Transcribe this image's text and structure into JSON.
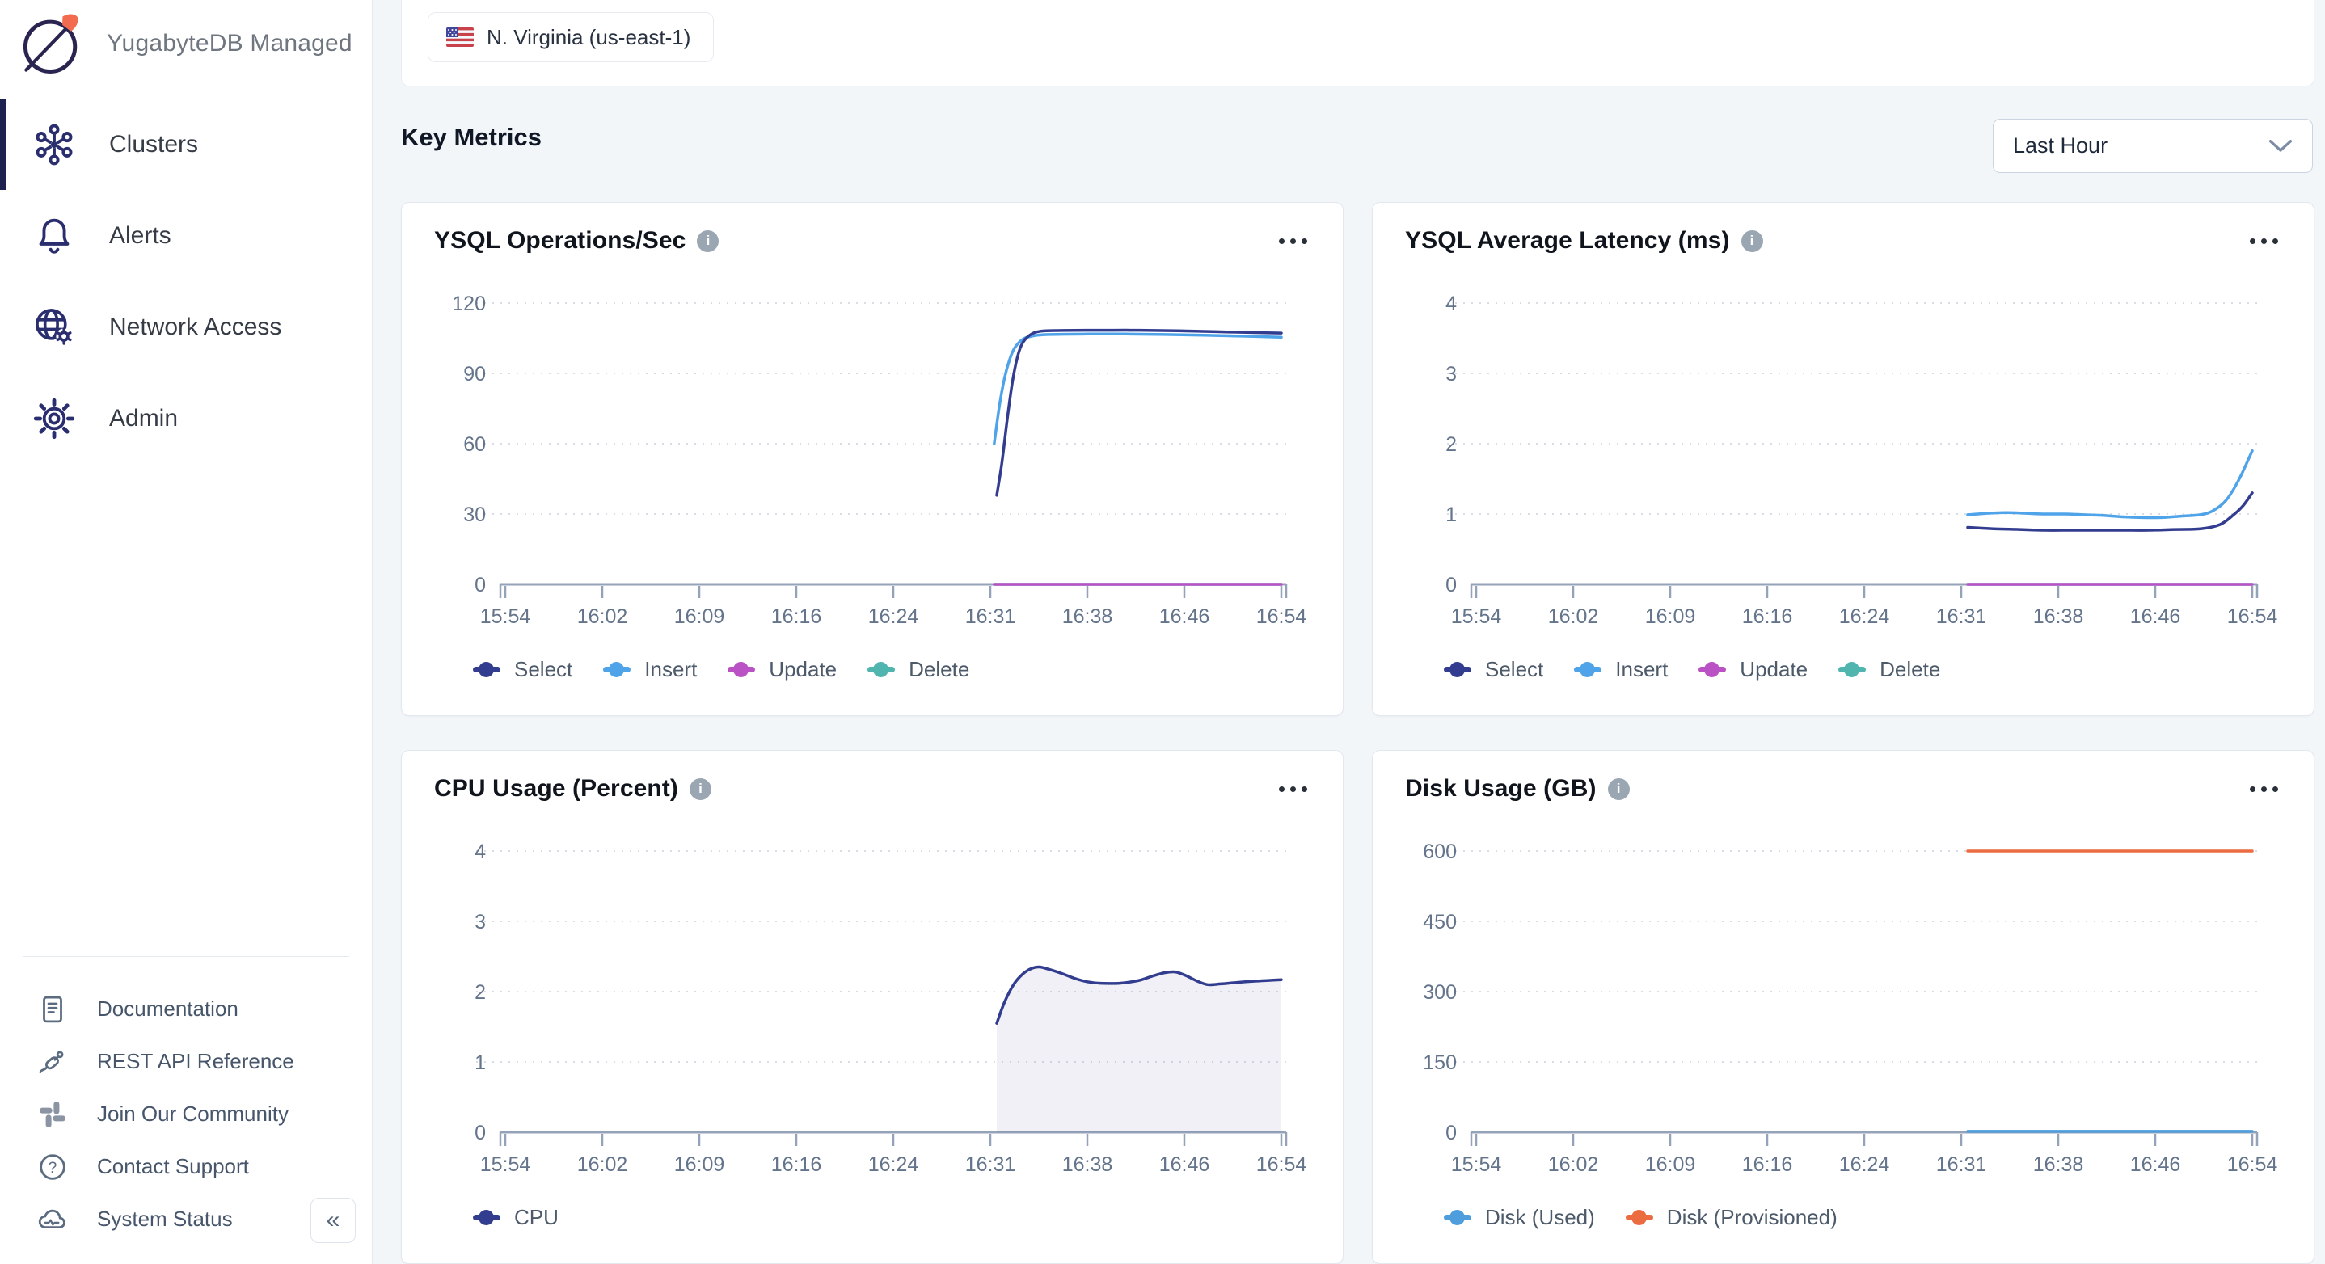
{
  "app": {
    "title": "YugabyteDB Managed"
  },
  "sidebar": {
    "nav": [
      {
        "label": "Clusters",
        "icon": "clusters-icon",
        "active": true
      },
      {
        "label": "Alerts",
        "icon": "bell-icon",
        "active": false
      },
      {
        "label": "Network Access",
        "icon": "globe-gear-icon",
        "active": false
      },
      {
        "label": "Admin",
        "icon": "gear-icon",
        "active": false
      }
    ],
    "footer": [
      {
        "label": "Documentation",
        "icon": "document-icon"
      },
      {
        "label": "REST API Reference",
        "icon": "plug-icon"
      },
      {
        "label": "Join Our Community",
        "icon": "slack-icon"
      },
      {
        "label": "Contact Support",
        "icon": "help-icon"
      },
      {
        "label": "System Status",
        "icon": "cloud-status-icon"
      }
    ],
    "collapse_glyph": "«"
  },
  "header": {
    "region": "N. Virginia (us-east-1)"
  },
  "main": {
    "heading": "Key Metrics",
    "time_range": "Last Hour"
  },
  "icons": {
    "info_glyph": "i"
  },
  "colors": {
    "select": "#333D90",
    "insert": "#4FA3E8",
    "update": "#BA52C5",
    "delete": "#4FB5AE",
    "disk_used": "#4E9EDD",
    "disk_provisioned": "#EC6C41",
    "active_nav": "#1C2150",
    "sidebar_icon": "#2A2E6E",
    "axis": "#94A3B8",
    "grid": "#D9DEE6",
    "tick_text": "#64748B",
    "background": "#F3F6F9",
    "card_border": "#E3E8EF"
  },
  "chart_data": [
    {
      "type": "line",
      "title": "YSQL Operations/Sec",
      "x_ticks": [
        "15:54",
        "16:02",
        "16:09",
        "16:16",
        "16:24",
        "16:31",
        "16:38",
        "16:46",
        "16:54"
      ],
      "x_range_minutes": [
        0,
        60
      ],
      "ylim": [
        0,
        120
      ],
      "y_ticks": [
        0,
        30,
        60,
        90,
        120
      ],
      "grid": "dotted-horizontal",
      "legend_position": "bottom-left",
      "series": [
        {
          "name": "Select",
          "color": "#333D90",
          "points": [
            [
              38,
              38
            ],
            [
              38.4,
              52
            ],
            [
              38.8,
              70
            ],
            [
              39.2,
              86
            ],
            [
              39.6,
              97
            ],
            [
              40,
              103
            ],
            [
              40.6,
              106.5
            ],
            [
              41.4,
              108
            ],
            [
              43,
              108.3
            ],
            [
              46,
              108.4
            ],
            [
              49,
              108.4
            ],
            [
              52,
              108.2
            ],
            [
              55,
              107.8
            ],
            [
              58,
              107.4
            ],
            [
              60,
              107.2
            ]
          ]
        },
        {
          "name": "Insert",
          "color": "#4FA3E8",
          "points": [
            [
              37.8,
              60
            ],
            [
              38.2,
              76
            ],
            [
              38.6,
              88
            ],
            [
              39,
              96
            ],
            [
              39.4,
              101
            ],
            [
              40,
              104.5
            ],
            [
              40.8,
              106
            ],
            [
              42,
              106.6
            ],
            [
              45,
              106.8
            ],
            [
              48,
              106.8
            ],
            [
              51,
              106.6
            ],
            [
              54,
              106.3
            ],
            [
              57,
              105.9
            ],
            [
              60,
              105.4
            ]
          ]
        },
        {
          "name": "Update",
          "color": "#BA52C5",
          "points": [
            [
              37.8,
              0
            ],
            [
              60,
              0
            ]
          ]
        },
        {
          "name": "Delete",
          "color": "#4FB5AE",
          "points": [
            [
              37.8,
              0
            ],
            [
              60,
              0
            ]
          ]
        }
      ]
    },
    {
      "type": "line",
      "title": "YSQL Average Latency (ms)",
      "x_ticks": [
        "15:54",
        "16:02",
        "16:09",
        "16:16",
        "16:24",
        "16:31",
        "16:38",
        "16:46",
        "16:54"
      ],
      "x_range_minutes": [
        0,
        60
      ],
      "ylim": [
        0,
        4
      ],
      "y_ticks": [
        0,
        1,
        2,
        3,
        4
      ],
      "grid": "dotted-horizontal",
      "legend_position": "bottom-left",
      "series": [
        {
          "name": "Select",
          "color": "#333D90",
          "points": [
            [
              38,
              0.81
            ],
            [
              40,
              0.79
            ],
            [
              42,
              0.78
            ],
            [
              44,
              0.77
            ],
            [
              46,
              0.77
            ],
            [
              48,
              0.77
            ],
            [
              50,
              0.77
            ],
            [
              52,
              0.77
            ],
            [
              54,
              0.78
            ],
            [
              56,
              0.79
            ],
            [
              57.5,
              0.85
            ],
            [
              58.5,
              0.98
            ],
            [
              59.3,
              1.12
            ],
            [
              60,
              1.3
            ]
          ]
        },
        {
          "name": "Insert",
          "color": "#4FA3E8",
          "points": [
            [
              38,
              0.99
            ],
            [
              39.5,
              1.01
            ],
            [
              41,
              1.02
            ],
            [
              42.5,
              1.01
            ],
            [
              44,
              1.0
            ],
            [
              45.5,
              1.0
            ],
            [
              47,
              0.99
            ],
            [
              48.5,
              0.98
            ],
            [
              50,
              0.96
            ],
            [
              51.5,
              0.95
            ],
            [
              53,
              0.95
            ],
            [
              54.5,
              0.97
            ],
            [
              56,
              0.99
            ],
            [
              57,
              1.05
            ],
            [
              58,
              1.2
            ],
            [
              59,
              1.5
            ],
            [
              60,
              1.9
            ]
          ]
        },
        {
          "name": "Update",
          "color": "#BA52C5",
          "points": [
            [
              38,
              0
            ],
            [
              60,
              0
            ]
          ]
        },
        {
          "name": "Delete",
          "color": "#4FB5AE",
          "points": [
            [
              38,
              0
            ],
            [
              60,
              0
            ]
          ]
        }
      ]
    },
    {
      "type": "line",
      "title": "CPU Usage (Percent)",
      "x_ticks": [
        "15:54",
        "16:02",
        "16:09",
        "16:16",
        "16:24",
        "16:31",
        "16:38",
        "16:46",
        "16:54"
      ],
      "x_range_minutes": [
        0,
        60
      ],
      "ylim": [
        0,
        4
      ],
      "y_ticks": [
        0,
        1,
        2,
        3,
        4
      ],
      "grid": "dotted-horizontal",
      "legend_position": "bottom-left",
      "series": [
        {
          "name": "CPU",
          "color": "#333D90",
          "area": true,
          "area_color": "rgba(49,46,129,0.07)",
          "points": [
            [
              38,
              1.55
            ],
            [
              38.6,
              1.85
            ],
            [
              39.3,
              2.1
            ],
            [
              40,
              2.25
            ],
            [
              40.7,
              2.33
            ],
            [
              41.3,
              2.35
            ],
            [
              42,
              2.32
            ],
            [
              43,
              2.26
            ],
            [
              44,
              2.19
            ],
            [
              45,
              2.14
            ],
            [
              46,
              2.12
            ],
            [
              47.5,
              2.12
            ],
            [
              49,
              2.16
            ],
            [
              50,
              2.22
            ],
            [
              51,
              2.27
            ],
            [
              51.8,
              2.28
            ],
            [
              52.6,
              2.23
            ],
            [
              53.5,
              2.15
            ],
            [
              54.3,
              2.1
            ],
            [
              55.3,
              2.11
            ],
            [
              56.5,
              2.13
            ],
            [
              58,
              2.15
            ],
            [
              59,
              2.16
            ],
            [
              60,
              2.17
            ]
          ]
        }
      ]
    },
    {
      "type": "line",
      "title": "Disk Usage (GB)",
      "x_ticks": [
        "15:54",
        "16:02",
        "16:09",
        "16:16",
        "16:24",
        "16:31",
        "16:38",
        "16:46",
        "16:54"
      ],
      "x_range_minutes": [
        0,
        60
      ],
      "ylim": [
        0,
        600
      ],
      "y_ticks": [
        0,
        150,
        300,
        450,
        600
      ],
      "grid": "dotted-horizontal",
      "legend_position": "bottom-left",
      "series": [
        {
          "name": "Disk (Used)",
          "color": "#4E9EDD",
          "points": [
            [
              38,
              2
            ],
            [
              60,
              2
            ]
          ]
        },
        {
          "name": "Disk (Provisioned)",
          "color": "#EC6C41",
          "points": [
            [
              38,
              600
            ],
            [
              60,
              600
            ]
          ]
        }
      ]
    }
  ]
}
